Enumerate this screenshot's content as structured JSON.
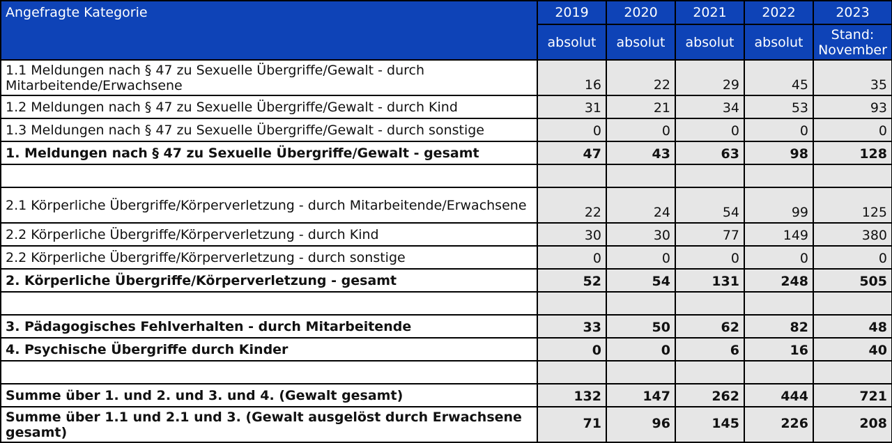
{
  "header": {
    "category_label": "Angefragte Kategorie",
    "years": [
      "2019",
      "2020",
      "2021",
      "2022",
      "2023"
    ],
    "subheaders": [
      "absolut",
      "absolut",
      "absolut",
      "absolut",
      "Stand: November"
    ]
  },
  "rows": [
    {
      "label": "1.1 Meldungen nach § 47 zu Sexuelle Übergriffe/Gewalt  - durch Mitarbeitende/Erwachsene",
      "values": [
        "16",
        "22",
        "29",
        "45",
        "35"
      ]
    },
    {
      "label": "1.2 Meldungen nach § 47 zu Sexuelle Übergriffe/Gewalt - durch Kind",
      "values": [
        "31",
        "21",
        "34",
        "53",
        "93"
      ]
    },
    {
      "label": "1.3 Meldungen nach § 47 zu Sexuelle Übergriffe/Gewalt - durch sonstige",
      "values": [
        "0",
        "0",
        "0",
        "0",
        "0"
      ]
    },
    {
      "label": "1. Meldungen nach § 47 zu Sexuelle Übergriffe/Gewalt - gesamt",
      "values": [
        "47",
        "43",
        "63",
        "98",
        "128"
      ]
    },
    {
      "label": "",
      "values": [
        "",
        "",
        "",
        "",
        ""
      ]
    },
    {
      "label": "2.1 Körperliche Übergriffe/Körperverletzung - durch Mitarbeitende/Erwachsene",
      "values": [
        "22",
        "24",
        "54",
        "99",
        "125"
      ]
    },
    {
      "label": "2.2 Körperliche Übergriffe/Körperverletzung - durch Kind",
      "values": [
        "30",
        "30",
        "77",
        "149",
        "380"
      ]
    },
    {
      "label": "2.2 Körperliche Übergriffe/Körperverletzung - durch sonstige",
      "values": [
        "0",
        "0",
        "0",
        "0",
        "0"
      ]
    },
    {
      "label": "2. Körperliche Übergriffe/Körperverletzung - gesamt",
      "values": [
        "52",
        "54",
        "131",
        "248",
        "505"
      ]
    },
    {
      "label": "",
      "values": [
        "",
        "",
        "",
        "",
        ""
      ]
    },
    {
      "label": "3. Pädagogisches Fehlverhalten - durch Mitarbeitende",
      "values": [
        "33",
        "50",
        "62",
        "82",
        "48"
      ]
    },
    {
      "label": "4. Psychische Übergriffe durch Kinder",
      "values": [
        "0",
        "0",
        "6",
        "16",
        "40"
      ]
    },
    {
      "label": "",
      "values": [
        "",
        "",
        "",
        "",
        ""
      ]
    },
    {
      "label": "Summe über 1. und 2. und 3. und 4. (Gewalt gesamt)",
      "values": [
        "132",
        "147",
        "262",
        "444",
        "721"
      ]
    },
    {
      "label": "Summe über 1.1 und 2.1 und 3. (Gewalt ausgelöst durch Erwachsene gesamt)",
      "values": [
        "71",
        "96",
        "145",
        "226",
        "208"
      ]
    }
  ]
}
